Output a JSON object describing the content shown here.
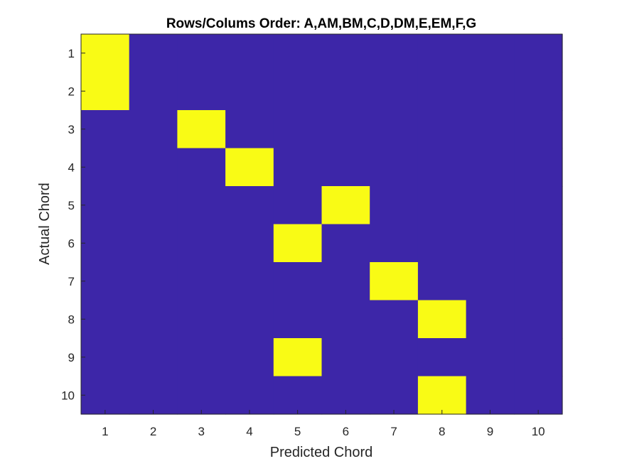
{
  "chart_data": {
    "type": "heatmap",
    "title": "Rows/Colums Order: A,AM,BM,C,D,DM,E,EM,F,G",
    "xlabel": "Predicted Chord",
    "ylabel": "Actual Chord",
    "x_ticks": [
      "1",
      "2",
      "3",
      "4",
      "5",
      "6",
      "7",
      "8",
      "9",
      "10"
    ],
    "y_ticks": [
      "1",
      "2",
      "3",
      "4",
      "5",
      "6",
      "7",
      "8",
      "9",
      "10"
    ],
    "matrix": [
      [
        1,
        0,
        0,
        0,
        0,
        0,
        0,
        0,
        0,
        0
      ],
      [
        1,
        0,
        0,
        0,
        0,
        0,
        0,
        0,
        0,
        0
      ],
      [
        0,
        0,
        1,
        0,
        0,
        0,
        0,
        0,
        0,
        0
      ],
      [
        0,
        0,
        0,
        1,
        0,
        0,
        0,
        0,
        0,
        0
      ],
      [
        0,
        0,
        0,
        0,
        0,
        1,
        0,
        0,
        0,
        0
      ],
      [
        0,
        0,
        0,
        0,
        1,
        0,
        0,
        0,
        0,
        0
      ],
      [
        0,
        0,
        0,
        0,
        0,
        0,
        1,
        0,
        0,
        0
      ],
      [
        0,
        0,
        0,
        0,
        0,
        0,
        0,
        1,
        0,
        0
      ],
      [
        0,
        0,
        0,
        0,
        1,
        0,
        0,
        0,
        0,
        0
      ],
      [
        0,
        0,
        0,
        0,
        0,
        0,
        0,
        1,
        0,
        0
      ]
    ],
    "value_range": [
      0,
      1
    ],
    "colors": {
      "low": "#3d26a8",
      "high": "#f9fb15",
      "frame": "#262626"
    },
    "grid": false
  }
}
